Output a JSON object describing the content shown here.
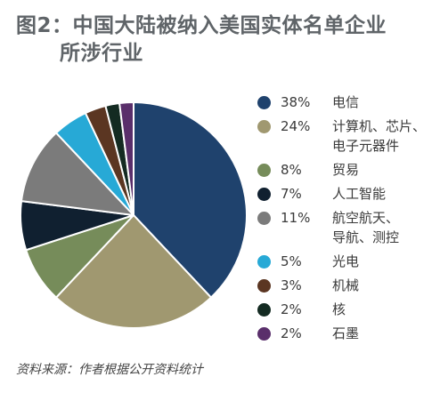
{
  "title": {
    "line1": "图2：中国大陆被纳入美国实体名单企业",
    "line2": "所涉行业"
  },
  "source": "资料来源：作者根据公开资料统计",
  "chart_data": {
    "type": "pie",
    "legend_position": "right",
    "series": [
      {
        "name": "电信",
        "pct_label": "38%",
        "value": 38,
        "color": "#1f426d",
        "label_lines": [
          "电信"
        ]
      },
      {
        "name": "计算机、芯片、电子元器件",
        "pct_label": "24%",
        "value": 24,
        "color": "#a09870",
        "label_lines": [
          "计算机、芯片、",
          "电子元器件"
        ]
      },
      {
        "name": "贸易",
        "pct_label": "8%",
        "value": 8,
        "color": "#768c5a",
        "label_lines": [
          "贸易"
        ]
      },
      {
        "name": "人工智能",
        "pct_label": "7%",
        "value": 7,
        "color": "#102030",
        "label_lines": [
          "人工智能"
        ]
      },
      {
        "name": "航空航天、导航、测控",
        "pct_label": "11%",
        "value": 11,
        "color": "#7b7b7b",
        "label_lines": [
          "航空航天、",
          "导航、测控"
        ]
      },
      {
        "name": "光电",
        "pct_label": "5%",
        "value": 5,
        "color": "#27a9d6",
        "label_lines": [
          "光电"
        ]
      },
      {
        "name": "机械",
        "pct_label": "3%",
        "value": 3,
        "color": "#5b3622",
        "label_lines": [
          "机械"
        ]
      },
      {
        "name": "核",
        "pct_label": "2%",
        "value": 2,
        "color": "#142b22",
        "label_lines": [
          "核"
        ]
      },
      {
        "name": "石墨",
        "pct_label": "2%",
        "value": 2,
        "color": "#5a2f6b",
        "label_lines": [
          "石墨"
        ]
      }
    ]
  }
}
